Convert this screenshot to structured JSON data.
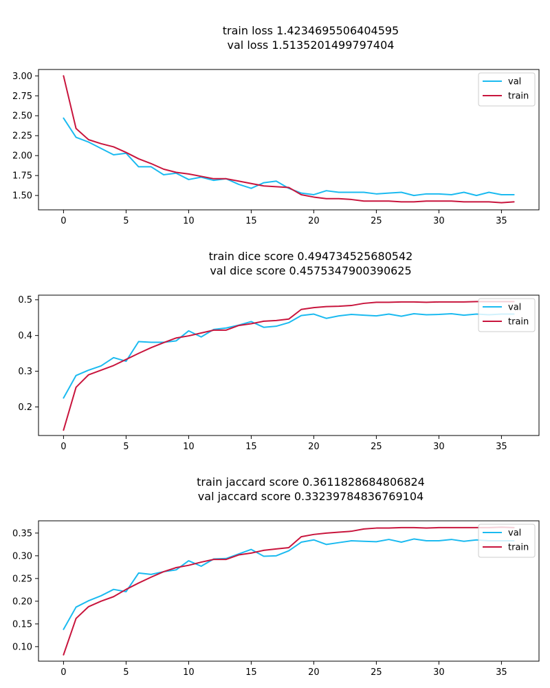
{
  "chart_data": [
    {
      "type": "line",
      "title_lines": [
        "train loss 1.4234695506404595",
        "val loss 1.5135201499797404"
      ],
      "xlabel": "",
      "ylabel": "",
      "xlim": [
        -2,
        38
      ],
      "ylim": [
        1.32,
        3.08
      ],
      "xticks": [
        0,
        5,
        10,
        15,
        20,
        25,
        30,
        35
      ],
      "xtick_labels": [
        "0",
        "5",
        "10",
        "15",
        "20",
        "25",
        "30",
        "35"
      ],
      "yticks": [
        1.5,
        1.75,
        2.0,
        2.25,
        2.5,
        2.75,
        3.0
      ],
      "ytick_labels": [
        "1.50",
        "1.75",
        "2.00",
        "2.25",
        "2.50",
        "2.75",
        "3.00"
      ],
      "grid": false,
      "legend_position": "upper right",
      "series": [
        {
          "name": "val",
          "color": "#1abaf0",
          "x": [
            0,
            1,
            2,
            3,
            4,
            5,
            6,
            7,
            8,
            9,
            10,
            11,
            12,
            13,
            14,
            15,
            16,
            17,
            18,
            19,
            20,
            21,
            22,
            23,
            24,
            25,
            26,
            27,
            28,
            29,
            30,
            31,
            32,
            33,
            34,
            35,
            36
          ],
          "y": [
            2.47,
            2.23,
            2.17,
            2.09,
            2.01,
            2.03,
            1.86,
            1.86,
            1.76,
            1.78,
            1.7,
            1.73,
            1.69,
            1.71,
            1.64,
            1.59,
            1.66,
            1.68,
            1.59,
            1.53,
            1.51,
            1.56,
            1.54,
            1.54,
            1.54,
            1.52,
            1.53,
            1.54,
            1.5,
            1.52,
            1.52,
            1.51,
            1.54,
            1.5,
            1.54,
            1.51,
            1.51
          ]
        },
        {
          "name": "train",
          "color": "#c8143c",
          "x": [
            0,
            1,
            2,
            3,
            4,
            5,
            6,
            7,
            8,
            9,
            10,
            11,
            12,
            13,
            14,
            15,
            16,
            17,
            18,
            19,
            20,
            21,
            22,
            23,
            24,
            25,
            26,
            27,
            28,
            29,
            30,
            31,
            32,
            33,
            34,
            35,
            36
          ],
          "y": [
            3.0,
            2.34,
            2.2,
            2.15,
            2.11,
            2.04,
            1.96,
            1.9,
            1.83,
            1.79,
            1.77,
            1.74,
            1.71,
            1.71,
            1.68,
            1.65,
            1.62,
            1.61,
            1.6,
            1.51,
            1.48,
            1.46,
            1.46,
            1.45,
            1.43,
            1.43,
            1.43,
            1.42,
            1.42,
            1.43,
            1.43,
            1.43,
            1.42,
            1.42,
            1.42,
            1.41,
            1.42
          ]
        }
      ]
    },
    {
      "type": "line",
      "title_lines": [
        "train dice score 0.494734525680542",
        "val dice score 0.4575347900390625"
      ],
      "xlabel": "",
      "ylabel": "",
      "xlim": [
        -2,
        38
      ],
      "ylim": [
        0.12,
        0.513
      ],
      "xticks": [
        0,
        5,
        10,
        15,
        20,
        25,
        30,
        35
      ],
      "xtick_labels": [
        "0",
        "5",
        "10",
        "15",
        "20",
        "25",
        "30",
        "35"
      ],
      "yticks": [
        0.2,
        0.3,
        0.4,
        0.5
      ],
      "ytick_labels": [
        "0.2",
        "0.3",
        "0.4",
        "0.5"
      ],
      "grid": false,
      "legend_position": "upper right",
      "series": [
        {
          "name": "val",
          "color": "#1abaf0",
          "x": [
            0,
            1,
            2,
            3,
            4,
            5,
            6,
            7,
            8,
            9,
            10,
            11,
            12,
            13,
            14,
            15,
            16,
            17,
            18,
            19,
            20,
            21,
            22,
            23,
            24,
            25,
            26,
            27,
            28,
            29,
            30,
            31,
            32,
            33,
            34,
            35,
            36
          ],
          "y": [
            0.225,
            0.288,
            0.303,
            0.315,
            0.338,
            0.328,
            0.383,
            0.381,
            0.381,
            0.385,
            0.413,
            0.396,
            0.417,
            0.421,
            0.429,
            0.439,
            0.423,
            0.426,
            0.436,
            0.456,
            0.46,
            0.448,
            0.455,
            0.459,
            0.457,
            0.455,
            0.46,
            0.454,
            0.461,
            0.458,
            0.459,
            0.461,
            0.457,
            0.46,
            0.458,
            0.46,
            0.46
          ]
        },
        {
          "name": "train",
          "color": "#c8143c",
          "x": [
            0,
            1,
            2,
            3,
            4,
            5,
            6,
            7,
            8,
            9,
            10,
            11,
            12,
            13,
            14,
            15,
            16,
            17,
            18,
            19,
            20,
            21,
            22,
            23,
            24,
            25,
            26,
            27,
            28,
            29,
            30,
            31,
            32,
            33,
            34,
            35,
            36
          ],
          "y": [
            0.135,
            0.255,
            0.29,
            0.303,
            0.316,
            0.333,
            0.35,
            0.366,
            0.38,
            0.393,
            0.399,
            0.407,
            0.415,
            0.415,
            0.428,
            0.433,
            0.44,
            0.442,
            0.446,
            0.473,
            0.478,
            0.481,
            0.482,
            0.484,
            0.49,
            0.493,
            0.493,
            0.494,
            0.494,
            0.493,
            0.494,
            0.494,
            0.494,
            0.495,
            0.495,
            0.495,
            0.495
          ]
        }
      ]
    },
    {
      "type": "line",
      "title_lines": [
        "train jaccard score 0.3611828684806824",
        "val jaccard score 0.33239784836769104"
      ],
      "xlabel": "",
      "ylabel": "",
      "xlim": [
        -2,
        38
      ],
      "ylim": [
        0.068,
        0.377
      ],
      "xticks": [
        0,
        5,
        10,
        15,
        20,
        25,
        30,
        35
      ],
      "xtick_labels": [
        "0",
        "5",
        "10",
        "15",
        "20",
        "25",
        "30",
        "35"
      ],
      "yticks": [
        0.1,
        0.15,
        0.2,
        0.25,
        0.3,
        0.35
      ],
      "ytick_labels": [
        "0.10",
        "0.15",
        "0.20",
        "0.25",
        "0.30",
        "0.35"
      ],
      "grid": false,
      "legend_position": "upper right",
      "series": [
        {
          "name": "val",
          "color": "#1abaf0",
          "x": [
            0,
            1,
            2,
            3,
            4,
            5,
            6,
            7,
            8,
            9,
            10,
            11,
            12,
            13,
            14,
            15,
            16,
            17,
            18,
            19,
            20,
            21,
            22,
            23,
            24,
            25,
            26,
            27,
            28,
            29,
            30,
            31,
            32,
            33,
            34,
            35,
            36
          ],
          "y": [
            0.138,
            0.187,
            0.201,
            0.212,
            0.226,
            0.221,
            0.262,
            0.259,
            0.265,
            0.269,
            0.289,
            0.277,
            0.293,
            0.294,
            0.304,
            0.314,
            0.299,
            0.3,
            0.311,
            0.33,
            0.335,
            0.325,
            0.329,
            0.333,
            0.332,
            0.331,
            0.336,
            0.33,
            0.337,
            0.333,
            0.333,
            0.336,
            0.332,
            0.335,
            0.333,
            0.333,
            0.333
          ]
        },
        {
          "name": "train",
          "color": "#c8143c",
          "x": [
            0,
            1,
            2,
            3,
            4,
            5,
            6,
            7,
            8,
            9,
            10,
            11,
            12,
            13,
            14,
            15,
            16,
            17,
            18,
            19,
            20,
            21,
            22,
            23,
            24,
            25,
            26,
            27,
            28,
            29,
            30,
            31,
            32,
            33,
            34,
            35,
            36
          ],
          "y": [
            0.082,
            0.162,
            0.188,
            0.2,
            0.21,
            0.226,
            0.24,
            0.253,
            0.265,
            0.274,
            0.279,
            0.286,
            0.292,
            0.292,
            0.302,
            0.306,
            0.312,
            0.315,
            0.318,
            0.342,
            0.347,
            0.35,
            0.352,
            0.354,
            0.359,
            0.361,
            0.361,
            0.362,
            0.362,
            0.361,
            0.362,
            0.362,
            0.362,
            0.362,
            0.362,
            0.363,
            0.362
          ]
        }
      ]
    }
  ]
}
